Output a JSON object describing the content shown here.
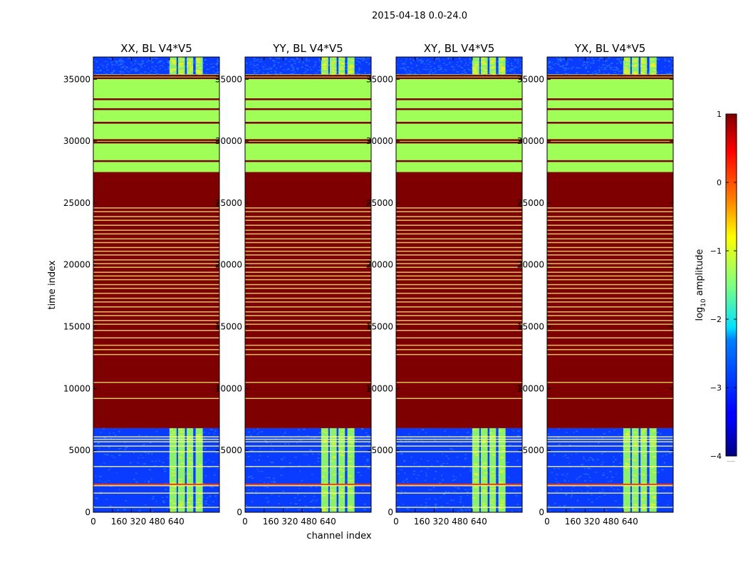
{
  "chart_data": {
    "type": "heatmap",
    "suptitle": "2015-04-18 0.0-24.0",
    "xlabel": "channel index",
    "ylabel": "time index",
    "xlim": [
      0,
      1024
    ],
    "ylim": [
      0,
      36800
    ],
    "x_ticks": [
      0,
      160,
      320,
      480,
      640
    ],
    "x_tick_labels": [
      "0",
      "160",
      "320",
      "480",
      "640"
    ],
    "y_ticks": [
      0,
      5000,
      10000,
      15000,
      20000,
      25000,
      30000,
      35000
    ],
    "y_tick_labels": [
      "0",
      "5000",
      "10000",
      "15000",
      "20000",
      "25000",
      "30000",
      "35000"
    ],
    "panels": [
      {
        "title": "XX, BL V4*V5"
      },
      {
        "title": "YY, BL V4*V5"
      },
      {
        "title": "XY, BL V4*V5"
      },
      {
        "title": "YX, BL V4*V5"
      }
    ],
    "colorbar": {
      "label": "log10 amplitude",
      "label_main": "log",
      "label_sub": "10",
      "label_rest": " amplitude",
      "range": [
        -4,
        1
      ],
      "ticks": [
        1,
        0,
        -1,
        -2,
        -3,
        -4
      ],
      "tick_labels": [
        "1",
        "0",
        "−1",
        "−2",
        "−3",
        "−4"
      ],
      "colormap": "jet",
      "footnote": "......"
    },
    "regions": [
      {
        "time": [
          0,
          6800
        ],
        "fill": "noise",
        "value": -3.2
      },
      {
        "time": [
          6800,
          27500
        ],
        "fill": "saturated",
        "value": 1.0
      },
      {
        "time": [
          27500,
          35400
        ],
        "fill": "flat",
        "value": -1.3
      },
      {
        "time": [
          35400,
          36800
        ],
        "fill": "noise",
        "value": -3.2
      }
    ],
    "dark_lines": [
      2250,
      9300,
      10450,
      28400,
      29900,
      30100,
      31500,
      32600,
      33400,
      35100,
      35300
    ],
    "light_lines": [
      400,
      1550,
      2150,
      3700,
      4900,
      5350,
      5700,
      5900,
      6100,
      9200,
      10500,
      12750,
      13150,
      13500,
      14100,
      14700,
      15200,
      15500,
      15900,
      16200,
      16600,
      17000,
      17300,
      17700,
      18100,
      18400,
      18800,
      19100,
      19400,
      19800,
      20100,
      20400,
      20800,
      21100,
      21400,
      21800,
      22100,
      22500,
      22800,
      23200,
      23600,
      23900,
      24300,
      24600
    ],
    "signal_bands": [
      {
        "channels": [
          640,
          700
        ]
      },
      {
        "channels": [
          712,
          770
        ]
      },
      {
        "channels": [
          785,
          840
        ]
      },
      {
        "channels": [
          860,
          920
        ]
      }
    ],
    "colors": {
      "low": "#0a3cff",
      "noise_speckle": "#2a7dff",
      "band": "#8cf06c",
      "band_highlight": "#f3f020",
      "flat_region": "#a0ff56",
      "saturated": "#7f0000",
      "red_line": "#ff3a00",
      "light_line": "#ffff88"
    }
  }
}
